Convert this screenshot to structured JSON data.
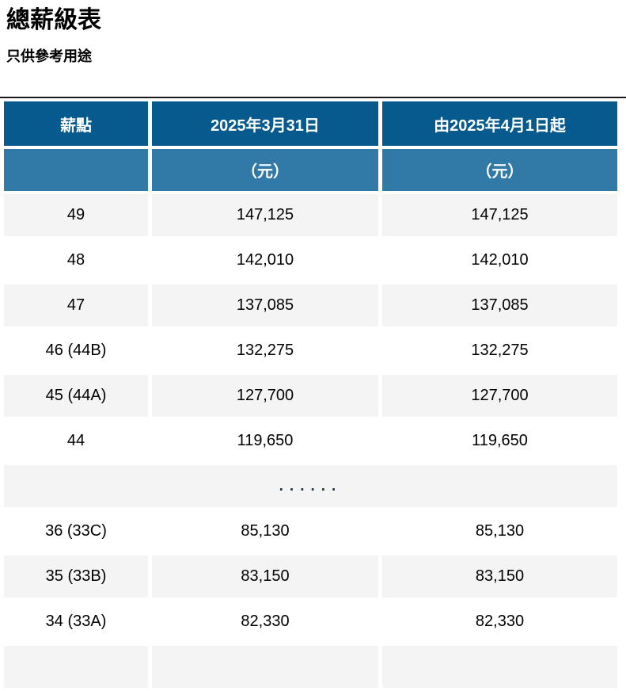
{
  "page": {
    "title": "總薪級表",
    "subtitle": "只供參考用途"
  },
  "colors": {
    "header_bg": "#075a8e",
    "subheader_bg": "#3179a7",
    "row_alt_bg": "#f4f4f4",
    "header_text": "#ffffff",
    "body_text": "#000000",
    "dots_color": "#1d3340",
    "rule_color": "#1a1a1a"
  },
  "table": {
    "columns": [
      {
        "header": "薪點",
        "subheader": ""
      },
      {
        "header": "2025年3月31日",
        "subheader": "（元）"
      },
      {
        "header": "由2025年4月1日起",
        "subheader": "（元）"
      }
    ],
    "ellipsis": "......",
    "rows": [
      {
        "point": "49",
        "amount_before": "147,125",
        "amount_after": "147,125"
      },
      {
        "point": "48",
        "amount_before": "142,010",
        "amount_after": "142,010"
      },
      {
        "point": "47",
        "amount_before": "137,085",
        "amount_after": "137,085"
      },
      {
        "point": "46 (44B)",
        "amount_before": "132,275",
        "amount_after": "132,275"
      },
      {
        "point": "45 (44A)",
        "amount_before": "127,700",
        "amount_after": "127,700"
      },
      {
        "point": "44",
        "amount_before": "119,650",
        "amount_after": "119,650"
      },
      {
        "point": "36 (33C)",
        "amount_before": "85,130",
        "amount_after": "85,130"
      },
      {
        "point": "35 (33B)",
        "amount_before": "83,150",
        "amount_after": "83,150"
      },
      {
        "point": "34 (33A)",
        "amount_before": "82,330",
        "amount_after": "82,330"
      }
    ]
  }
}
